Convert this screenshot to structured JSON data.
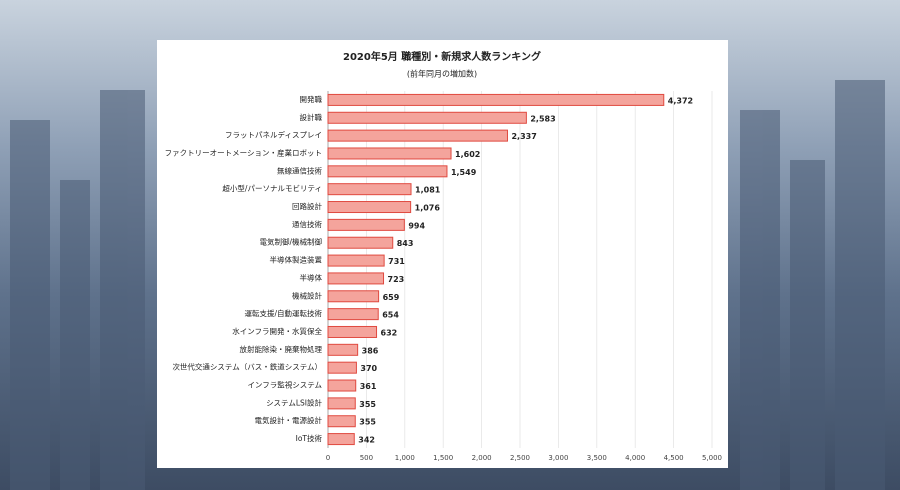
{
  "chart_data": {
    "type": "bar",
    "orientation": "horizontal",
    "title": "2020年5月 職種別・新規求人数ランキング",
    "subtitle": "(前年同月の増加数)",
    "categories": [
      "開発職",
      "設計職",
      "フラットパネルディスプレイ",
      "ファクトリーオートメーション・産業ロボット",
      "無線通信技術",
      "超小型/パーソナルモビリティ",
      "回路設計",
      "通信技術",
      "電気制御/機械制御",
      "半導体製造装置",
      "半導体",
      "機械設計",
      "運転支援/自動運転技術",
      "水インフラ開発・水質保全",
      "放射能除染・廃棄物処理",
      "次世代交通システム（バス・鉄道システム）",
      "インフラ監視システム",
      "システムLSI設計",
      "電気設計・電源設計",
      "IoT技術"
    ],
    "values": [
      4372,
      2583,
      2337,
      1602,
      1549,
      1081,
      1076,
      994,
      843,
      731,
      723,
      659,
      654,
      632,
      386,
      370,
      361,
      355,
      355,
      342
    ],
    "value_labels": [
      "4,372",
      "2,583",
      "2,337",
      "1,602",
      "1,549",
      "1,081",
      "1,076",
      "994",
      "843",
      "731",
      "723",
      "659",
      "654",
      "632",
      "386",
      "370",
      "361",
      "355",
      "355",
      "342"
    ],
    "color": "#f4a49c",
    "edge_color": "#e04a40",
    "xlim": [
      0,
      5000
    ],
    "xticks": [
      0,
      500,
      {
        "value": 1000,
        "label": "1,000"
      },
      {
        "value": 1500,
        "label": "1,500"
      },
      {
        "value": 2000,
        "label": "2,000"
      },
      {
        "value": 2500,
        "label": "2,500"
      },
      {
        "value": 3000,
        "label": "3,000"
      },
      {
        "value": 3500,
        "label": "3,500"
      },
      {
        "value": 4000,
        "label": "4,000"
      },
      {
        "value": 4500,
        "label": "4,500"
      },
      {
        "value": 5000,
        "label": "5,000"
      }
    ],
    "grid": true
  }
}
